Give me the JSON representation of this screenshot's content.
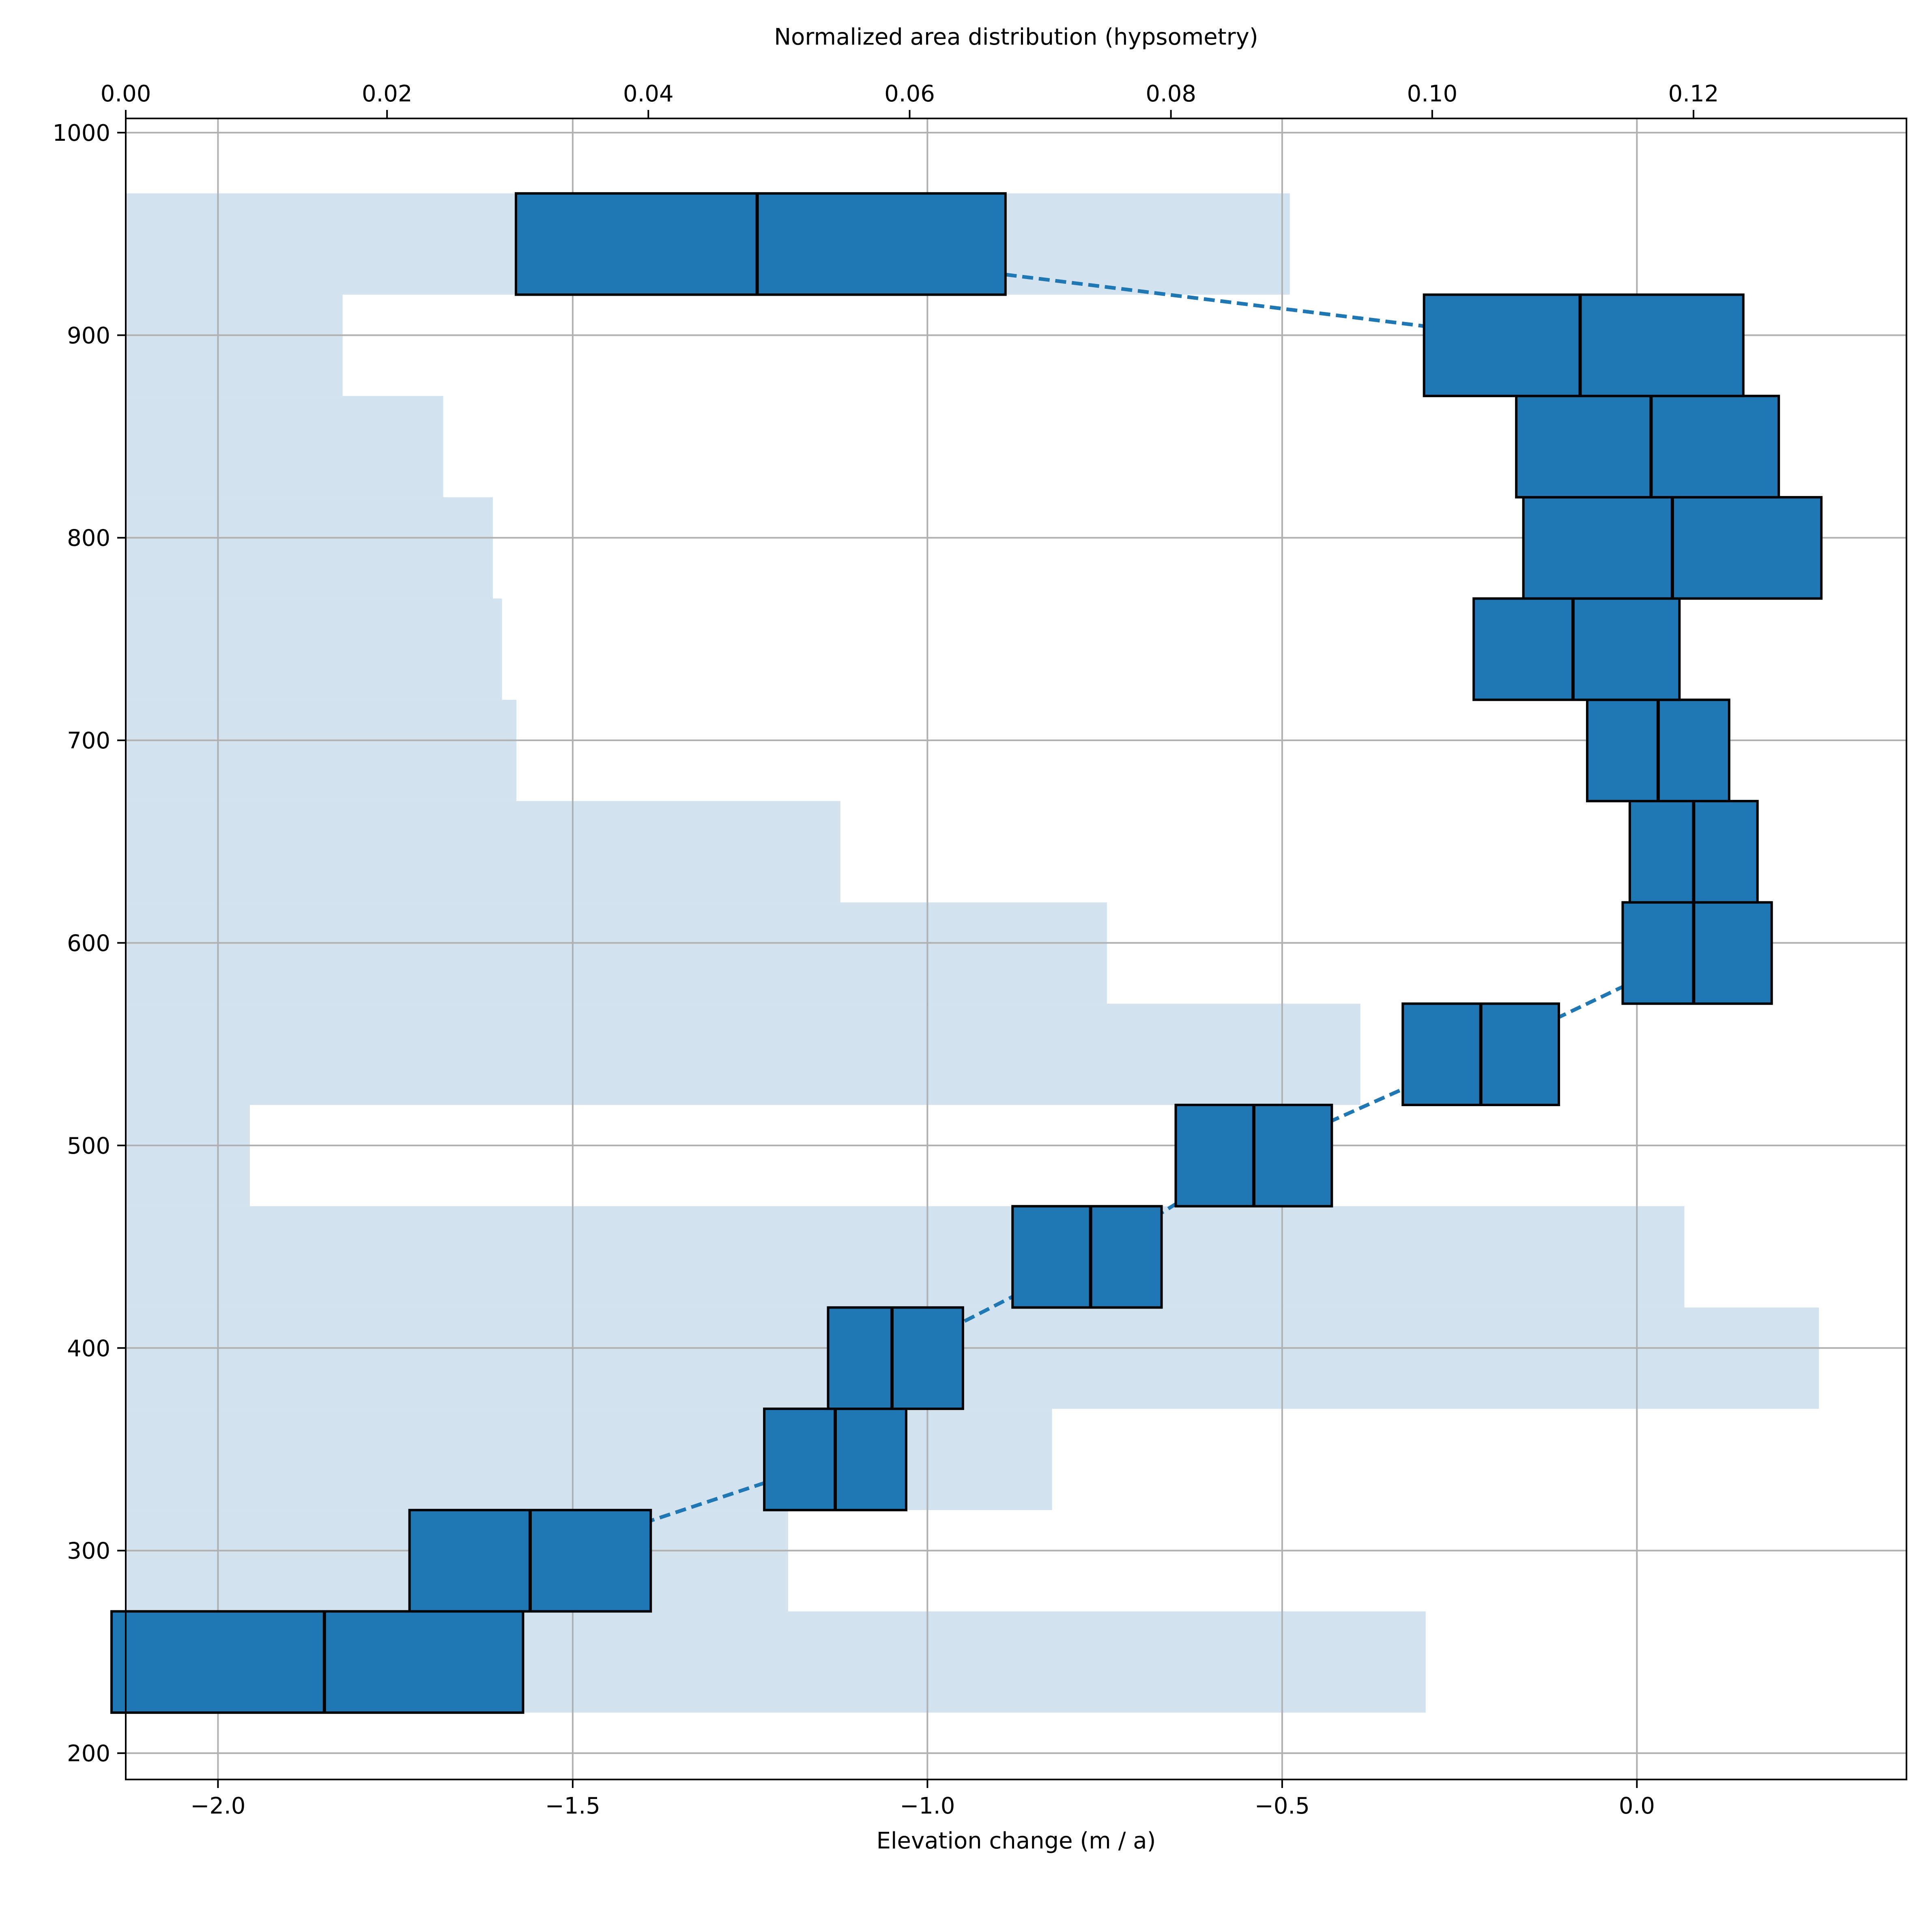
{
  "chart_data": {
    "type": "bar",
    "title": "",
    "xlabel": "Elevation change (m / a)",
    "ylabel": "",
    "x2label": "Normalized area distribution (hypsometry)",
    "xlim": [
      -2.13,
      0.38
    ],
    "ylim": [
      187,
      1007
    ],
    "x2lim": [
      0.0,
      0.1363
    ],
    "xticks": [
      -2.0,
      -1.5,
      -1.0,
      -0.5,
      0.0
    ],
    "xtick_labels": [
      "−2.0",
      "−1.5",
      "−1.0",
      "−0.5",
      "0.0"
    ],
    "x2ticks": [
      0.0,
      0.02,
      0.04,
      0.06,
      0.08,
      0.1,
      0.12
    ],
    "x2tick_labels": [
      "0.00",
      "0.02",
      "0.04",
      "0.06",
      "0.08",
      "0.10",
      "0.12"
    ],
    "yticks": [
      200,
      300,
      400,
      500,
      600,
      700,
      800,
      900,
      1000
    ],
    "ytick_labels": [
      "200",
      "300",
      "400",
      "500",
      "600",
      "700",
      "800",
      "900",
      "1000"
    ],
    "grid": true,
    "colors": {
      "box_fill": "#1f77b4",
      "box_edge": "#000000",
      "median_line": "#000000",
      "dashed_line": "#1f77b4",
      "hypsometry": "#d2e3ef",
      "grid": "#b0b0b0"
    },
    "elevation_bands": [
      {
        "band": [
          220,
          270
        ],
        "low": -2.15,
        "median": -1.85,
        "high": -1.57
      },
      {
        "band": [
          270,
          320
        ],
        "low": -1.73,
        "median": -1.56,
        "high": -1.39
      },
      {
        "band": [
          320,
          370
        ],
        "low": -1.23,
        "median": -1.13,
        "high": -1.03
      },
      {
        "band": [
          370,
          420
        ],
        "low": -1.14,
        "median": -1.05,
        "high": -0.95
      },
      {
        "band": [
          420,
          470
        ],
        "low": -0.88,
        "median": -0.77,
        "high": -0.67
      },
      {
        "band": [
          470,
          520
        ],
        "low": -0.65,
        "median": -0.54,
        "high": -0.43
      },
      {
        "band": [
          520,
          570
        ],
        "low": -0.33,
        "median": -0.22,
        "high": -0.11
      },
      {
        "band": [
          570,
          620
        ],
        "low": -0.02,
        "median": 0.08,
        "high": 0.19
      },
      {
        "band": [
          620,
          670
        ],
        "low": -0.01,
        "median": 0.08,
        "high": 0.17
      },
      {
        "band": [
          670,
          720
        ],
        "low": -0.07,
        "median": 0.03,
        "high": 0.13
      },
      {
        "band": [
          720,
          770
        ],
        "low": -0.23,
        "median": -0.09,
        "high": 0.06
      },
      {
        "band": [
          770,
          820
        ],
        "low": -0.16,
        "median": 0.05,
        "high": 0.26
      },
      {
        "band": [
          820,
          870
        ],
        "low": -0.17,
        "median": 0.02,
        "high": 0.2
      },
      {
        "band": [
          870,
          920
        ],
        "low": -0.3,
        "median": -0.08,
        "high": 0.15
      },
      {
        "band": [
          920,
          970
        ],
        "low": -1.58,
        "median": -1.24,
        "high": -0.89
      }
    ],
    "hypsometry": [
      {
        "band": [
          220,
          270
        ],
        "area": 0.0995
      },
      {
        "band": [
          270,
          320
        ],
        "area": 0.0507
      },
      {
        "band": [
          320,
          370
        ],
        "area": 0.0709
      },
      {
        "band": [
          370,
          420
        ],
        "area": 0.1296
      },
      {
        "band": [
          420,
          470
        ],
        "area": 0.1193
      },
      {
        "band": [
          470,
          520
        ],
        "area": 0.0095
      },
      {
        "band": [
          520,
          570
        ],
        "area": 0.0945
      },
      {
        "band": [
          570,
          620
        ],
        "area": 0.0751
      },
      {
        "band": [
          620,
          670
        ],
        "area": 0.0547
      },
      {
        "band": [
          670,
          720
        ],
        "area": 0.0299
      },
      {
        "band": [
          720,
          770
        ],
        "area": 0.0288
      },
      {
        "band": [
          770,
          820
        ],
        "area": 0.0281
      },
      {
        "band": [
          820,
          870
        ],
        "area": 0.0243
      },
      {
        "band": [
          870,
          920
        ],
        "area": 0.0166
      },
      {
        "band": [
          920,
          970
        ],
        "area": 0.0891
      }
    ]
  }
}
